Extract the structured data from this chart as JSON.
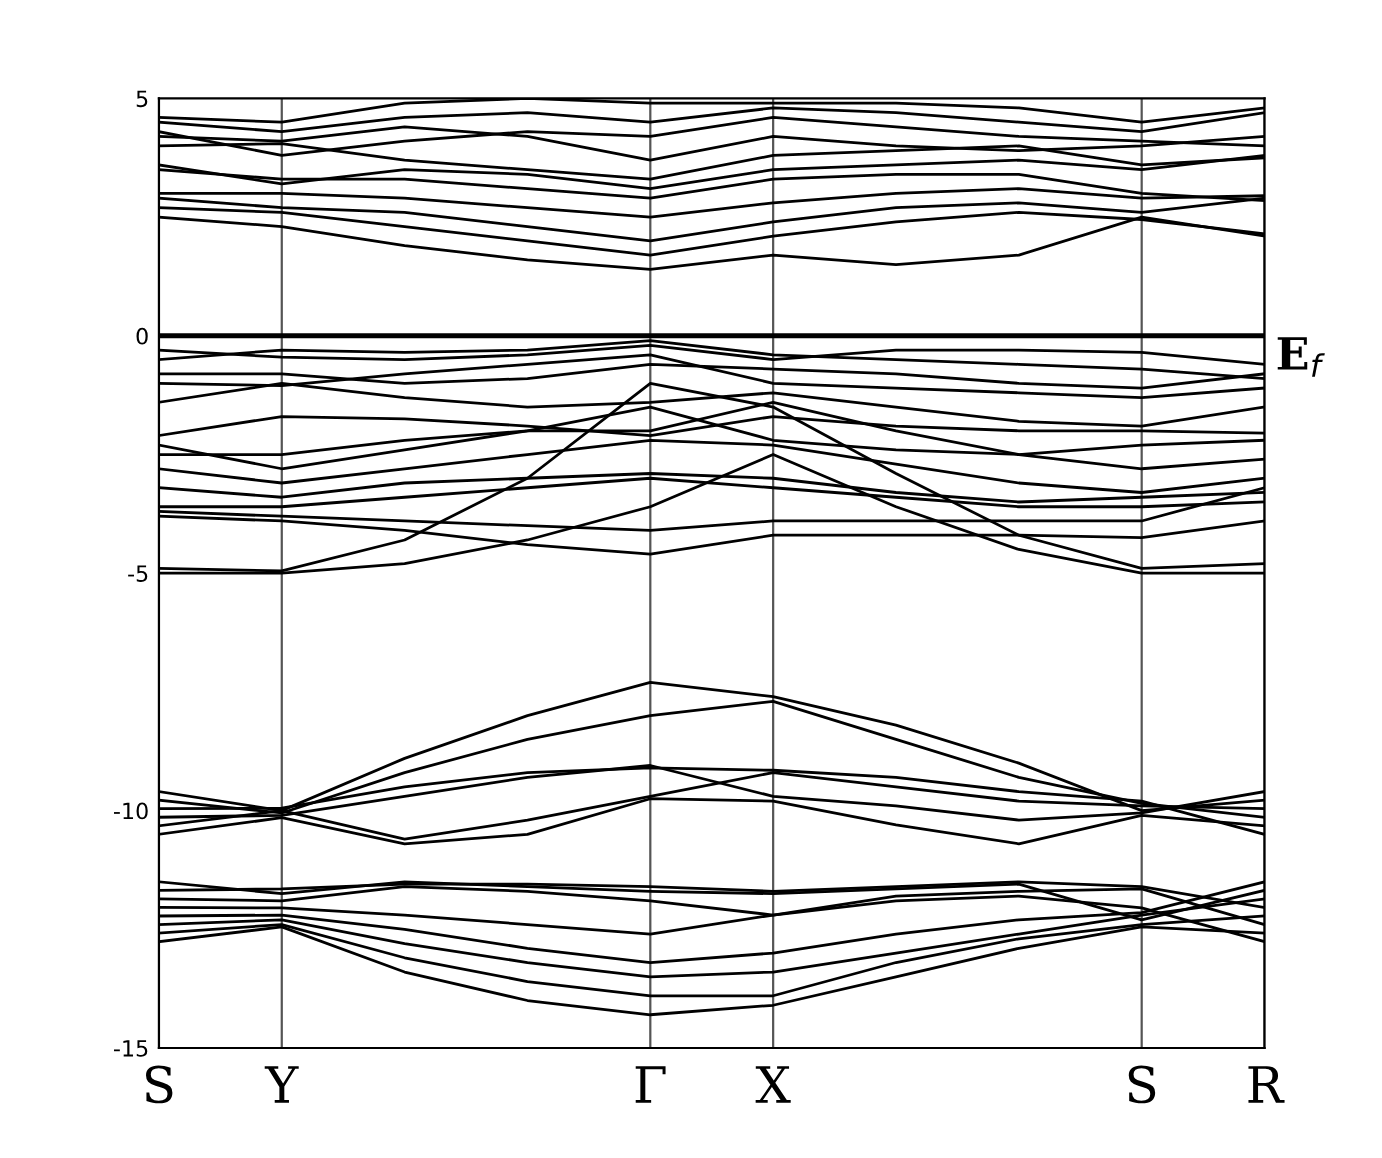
{
  "chart_data": {
    "type": "line",
    "categories": [
      "S",
      "Y",
      null,
      null,
      "Γ",
      "X",
      null,
      null,
      "S",
      "R"
    ],
    "ylim": [
      -15,
      5
    ],
    "yticks": [
      -15,
      -10,
      -5,
      0,
      5
    ],
    "grid": "x",
    "line_style": "solid",
    "ref_lines": [
      {
        "axis": "y",
        "value": 0,
        "label": "E$_{f}$",
        "color": "#000000"
      }
    ],
    "series": [
      {
        "color": "#000000",
        "values": [
          -12.76,
          -12.45,
          -13.4,
          -14.0,
          -14.3,
          -14.1,
          -13.5,
          -12.9,
          -12.45,
          -12.58
        ]
      },
      {
        "color": "#000000",
        "values": [
          -12.58,
          -12.4,
          -13.1,
          -13.6,
          -13.9,
          -13.9,
          -13.2,
          -12.7,
          -12.4,
          -12.22
        ]
      },
      {
        "color": "#000000",
        "values": [
          -12.4,
          -12.3,
          -12.8,
          -13.2,
          -13.5,
          -13.4,
          -13.0,
          -12.6,
          -12.2,
          -11.86
        ]
      },
      {
        "color": "#000000",
        "values": [
          -12.22,
          -12.2,
          -12.5,
          -12.9,
          -13.2,
          -13.0,
          -12.6,
          -12.3,
          -12.15,
          -11.5
        ]
      },
      {
        "color": "#000000",
        "values": [
          -12.04,
          -12.05,
          -12.2,
          -12.4,
          -12.6,
          -12.2,
          -11.9,
          -11.8,
          -12.05,
          -12.76
        ]
      },
      {
        "color": "#000000",
        "values": [
          -11.86,
          -11.9,
          -11.6,
          -11.7,
          -11.9,
          -12.2,
          -11.8,
          -11.7,
          -11.65,
          -12.4
        ]
      },
      {
        "color": "#000000",
        "values": [
          -11.68,
          -11.65,
          -11.55,
          -11.55,
          -11.6,
          -11.7,
          -11.6,
          -11.5,
          -11.6,
          -12.04
        ]
      },
      {
        "color": "#000000",
        "values": [
          -11.5,
          -11.75,
          -11.5,
          -11.6,
          -11.7,
          -11.75,
          -11.65,
          -11.55,
          -12.3,
          -11.68
        ]
      },
      {
        "color": "#000000",
        "values": [
          -9.6,
          -10.0,
          -8.9,
          -8.0,
          -7.3,
          -7.6,
          -8.2,
          -9.0,
          -10.0,
          -9.78
        ]
      },
      {
        "color": "#000000",
        "values": [
          -9.78,
          -10.05,
          -9.2,
          -8.5,
          -8.0,
          -7.7,
          -8.5,
          -9.3,
          -9.85,
          -10.14
        ]
      },
      {
        "color": "#000000",
        "values": [
          -9.96,
          -9.95,
          -9.5,
          -9.2,
          -9.1,
          -9.15,
          -9.3,
          -9.6,
          -9.8,
          -10.5
        ]
      },
      {
        "color": "#000000",
        "values": [
          -10.14,
          -10.1,
          -9.7,
          -9.3,
          -9.05,
          -9.7,
          -9.9,
          -10.2,
          -10.05,
          -9.6
        ]
      },
      {
        "color": "#000000",
        "values": [
          -10.32,
          -10.0,
          -10.6,
          -10.2,
          -9.7,
          -9.2,
          -9.5,
          -9.8,
          -9.9,
          -9.96
        ]
      },
      {
        "color": "#000000",
        "values": [
          -10.5,
          -10.15,
          -10.7,
          -10.5,
          -9.75,
          -9.8,
          -10.3,
          -10.7,
          -10.1,
          -10.32
        ]
      },
      {
        "color": "#000000",
        "values": [
          -5.0,
          -5.0,
          -4.8,
          -4.3,
          -3.6,
          -2.5,
          -3.6,
          -4.5,
          -5.0,
          -5.0
        ]
      },
      {
        "color": "#000000",
        "values": [
          -4.9,
          -4.95,
          -4.3,
          -3.0,
          -1.0,
          -1.5,
          -2.9,
          -4.2,
          -4.9,
          -4.8
        ]
      },
      {
        "color": "#000000",
        "values": [
          -3.8,
          -3.9,
          -4.1,
          -4.4,
          -4.6,
          -4.2,
          -4.2,
          -4.2,
          -4.25,
          -3.9
        ]
      },
      {
        "color": "#000000",
        "values": [
          -3.7,
          -3.8,
          -3.9,
          -4.0,
          -4.1,
          -3.9,
          -3.9,
          -3.9,
          -3.9,
          -3.2
        ]
      },
      {
        "color": "#000000",
        "values": [
          -3.6,
          -3.6,
          -3.4,
          -3.2,
          -3.0,
          -3.2,
          -3.4,
          -3.6,
          -3.6,
          -3.5
        ]
      },
      {
        "color": "#000000",
        "values": [
          -3.2,
          -3.4,
          -3.1,
          -3.0,
          -2.9,
          -3.0,
          -3.3,
          -3.5,
          -3.4,
          -3.3
        ]
      },
      {
        "color": "#000000",
        "values": [
          -2.8,
          -3.1,
          -2.8,
          -2.5,
          -2.2,
          -2.3,
          -2.7,
          -3.1,
          -3.3,
          -3.0
        ]
      },
      {
        "color": "#000000",
        "values": [
          -2.5,
          -2.5,
          -2.2,
          -2.0,
          -2.0,
          -1.4,
          -2.0,
          -2.5,
          -2.8,
          -2.6
        ]
      },
      {
        "color": "#000000",
        "values": [
          -2.3,
          -2.8,
          -2.4,
          -2.0,
          -1.5,
          -2.2,
          -2.4,
          -2.5,
          -2.3,
          -2.2
        ]
      },
      {
        "color": "#000000",
        "values": [
          -2.1,
          -1.7,
          -1.75,
          -1.9,
          -2.1,
          -1.7,
          -1.9,
          -2.0,
          -2.0,
          -2.05
        ]
      },
      {
        "color": "#000000",
        "values": [
          -1.4,
          -1.0,
          -1.3,
          -1.5,
          -1.4,
          -1.2,
          -1.5,
          -1.8,
          -1.9,
          -1.5
        ]
      },
      {
        "color": "#000000",
        "values": [
          -1.0,
          -1.05,
          -0.8,
          -0.6,
          -0.4,
          -1.0,
          -1.1,
          -1.2,
          -1.3,
          -1.1
        ]
      },
      {
        "color": "#000000",
        "values": [
          -0.8,
          -0.8,
          -1.0,
          -0.9,
          -0.6,
          -0.7,
          -0.8,
          -1.0,
          -1.1,
          -0.8
        ]
      },
      {
        "color": "#000000",
        "values": [
          -0.5,
          -0.3,
          -0.35,
          -0.3,
          -0.1,
          -0.4,
          -0.5,
          -0.6,
          -0.7,
          -0.9
        ]
      },
      {
        "color": "#000000",
        "values": [
          -0.3,
          -0.45,
          -0.5,
          -0.4,
          -0.2,
          -0.5,
          -0.3,
          -0.3,
          -0.35,
          -0.6
        ]
      },
      {
        "color": "#000000",
        "values": [
          2.5,
          2.3,
          1.9,
          1.6,
          1.4,
          1.7,
          1.5,
          1.7,
          2.5,
          2.1
        ]
      },
      {
        "color": "#000000",
        "values": [
          2.7,
          2.6,
          2.3,
          2.0,
          1.7,
          2.1,
          2.4,
          2.6,
          2.45,
          2.15
        ]
      },
      {
        "color": "#000000",
        "values": [
          2.9,
          2.7,
          2.6,
          2.3,
          2.0,
          2.4,
          2.7,
          2.8,
          2.6,
          2.9
        ]
      },
      {
        "color": "#000000",
        "values": [
          3.0,
          3.0,
          2.9,
          2.7,
          2.5,
          2.8,
          3.0,
          3.1,
          2.9,
          2.95
        ]
      },
      {
        "color": "#000000",
        "values": [
          3.5,
          3.3,
          3.3,
          3.1,
          2.9,
          3.3,
          3.4,
          3.4,
          3.0,
          2.85
        ]
      },
      {
        "color": "#000000",
        "values": [
          3.6,
          3.2,
          3.5,
          3.4,
          3.1,
          3.5,
          3.6,
          3.7,
          3.5,
          3.8
        ]
      },
      {
        "color": "#000000",
        "values": [
          4.0,
          4.05,
          3.7,
          3.5,
          3.3,
          3.8,
          3.9,
          4.0,
          3.6,
          3.75
        ]
      },
      {
        "color": "#000000",
        "values": [
          4.2,
          4.1,
          4.4,
          4.2,
          3.7,
          4.2,
          4.0,
          3.9,
          4.0,
          4.2
        ]
      },
      {
        "color": "#000000",
        "values": [
          4.3,
          3.8,
          4.1,
          4.3,
          4.2,
          4.6,
          4.4,
          4.2,
          4.1,
          4.0
        ]
      },
      {
        "color": "#000000",
        "values": [
          4.5,
          4.3,
          4.6,
          4.7,
          4.5,
          4.8,
          4.7,
          4.5,
          4.3,
          4.7
        ]
      },
      {
        "color": "#000000",
        "values": [
          4.6,
          4.5,
          4.9,
          5.0,
          4.9,
          4.9,
          4.9,
          4.8,
          4.5,
          4.8
        ]
      }
    ]
  }
}
